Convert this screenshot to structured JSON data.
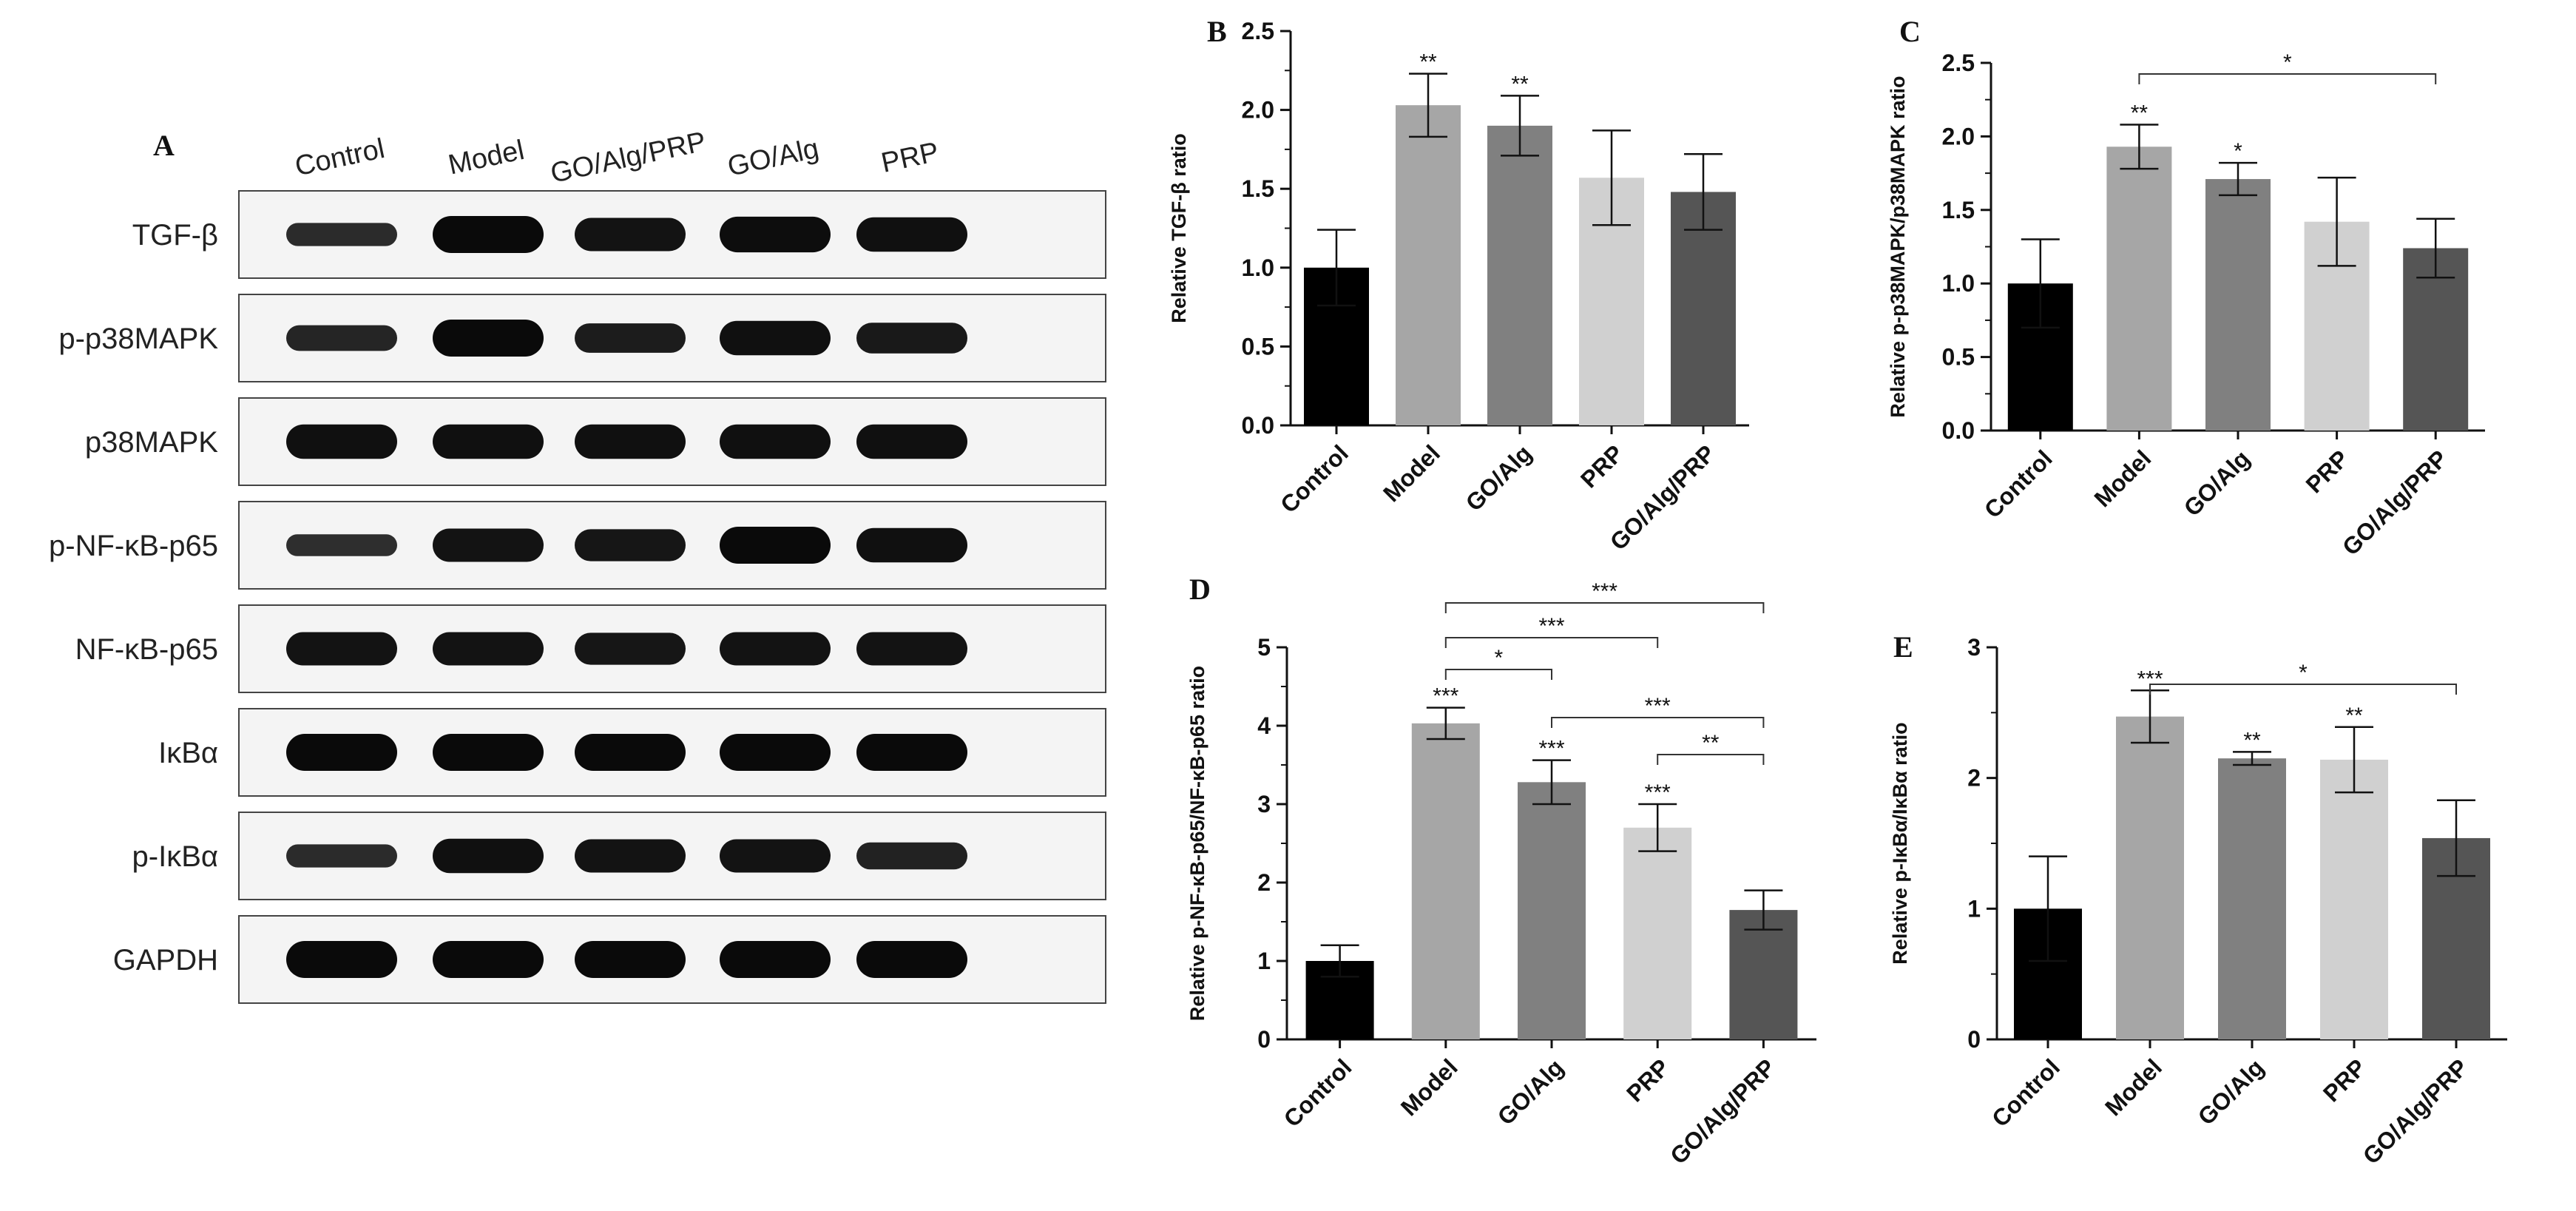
{
  "figure": {
    "panel_letters": {
      "A": "A",
      "B": "B",
      "C": "C",
      "D": "D",
      "E": "E"
    }
  },
  "blot": {
    "lanes": [
      "Control",
      "Model",
      "GO/Alg/PRP",
      "GO/Alg",
      "PRP"
    ],
    "rows": [
      {
        "label": "TGF-β",
        "intensity": [
          0.45,
          1.0,
          0.85,
          0.95,
          0.9
        ]
      },
      {
        "label": "p-p38MAPK",
        "intensity": [
          0.55,
          1.0,
          0.7,
          0.9,
          0.75
        ]
      },
      {
        "label": "p38MAPK",
        "intensity": [
          0.9,
          0.9,
          0.9,
          0.9,
          0.9
        ]
      },
      {
        "label": "p-NF-κB-p65",
        "intensity": [
          0.4,
          0.85,
          0.8,
          1.0,
          0.9
        ]
      },
      {
        "label": "NF-κB-p65",
        "intensity": [
          0.85,
          0.85,
          0.8,
          0.85,
          0.85
        ]
      },
      {
        "label": "IκBα",
        "intensity": [
          1.0,
          1.0,
          1.0,
          1.0,
          1.0
        ]
      },
      {
        "label": "p-IκBα",
        "intensity": [
          0.45,
          0.9,
          0.85,
          0.85,
          0.6
        ]
      },
      {
        "label": "GAPDH",
        "intensity": [
          1.0,
          1.0,
          1.0,
          1.0,
          1.0
        ]
      }
    ]
  },
  "chart_data": [
    {
      "id": "B",
      "type": "bar",
      "ylabel": "Relative TGF-β ratio",
      "ylim": [
        0,
        2.5
      ],
      "yticks": [
        0.0,
        0.5,
        1.0,
        1.5,
        2.0,
        2.5
      ],
      "ytick_labels": [
        "0.0",
        "0.5",
        "1.0",
        "1.5",
        "2.0",
        "2.5"
      ],
      "categories": [
        "Control",
        "Model",
        "GO/Alg",
        "PRP",
        "GO/Alg/PRP"
      ],
      "values": [
        1.0,
        2.03,
        1.9,
        1.57,
        1.48
      ],
      "errors": [
        0.24,
        0.2,
        0.19,
        0.3,
        0.24
      ],
      "colors": [
        "#000000",
        "#a6a6a6",
        "#808080",
        "#d0d0d0",
        "#555555"
      ],
      "stars": [
        "",
        "**",
        "**",
        "",
        ""
      ],
      "brackets": []
    },
    {
      "id": "C",
      "type": "bar",
      "ylabel": "Relative p-p38MAPK/p38MAPK ratio",
      "ylim": [
        0,
        2.5
      ],
      "yticks": [
        0.0,
        0.5,
        1.0,
        1.5,
        2.0,
        2.5
      ],
      "ytick_labels": [
        "0.0",
        "0.5",
        "1.0",
        "1.5",
        "2.0",
        "2.5"
      ],
      "categories": [
        "Control",
        "Model",
        "GO/Alg",
        "PRP",
        "GO/Alg/PRP"
      ],
      "values": [
        1.0,
        1.93,
        1.71,
        1.42,
        1.24
      ],
      "errors": [
        0.3,
        0.15,
        0.11,
        0.3,
        0.2
      ],
      "colors": [
        "#000000",
        "#a6a6a6",
        "#808080",
        "#d0d0d0",
        "#555555"
      ],
      "stars": [
        "",
        "**",
        "*",
        "",
        ""
      ],
      "brackets": [
        {
          "from": 1,
          "to": 4,
          "label": "*"
        }
      ]
    },
    {
      "id": "D",
      "type": "bar",
      "ylabel": "Relative p-NF-κB-p65/NF-κB-p65 ratio",
      "ylim": [
        0,
        5
      ],
      "yticks": [
        0,
        1,
        2,
        3,
        4,
        5
      ],
      "ytick_labels": [
        "0",
        "1",
        "2",
        "3",
        "4",
        "5"
      ],
      "categories": [
        "Control",
        "Model",
        "GO/Alg",
        "PRP",
        "GO/Alg/PRP"
      ],
      "values": [
        1.0,
        4.03,
        3.28,
        2.7,
        1.65
      ],
      "errors": [
        0.2,
        0.2,
        0.28,
        0.3,
        0.25
      ],
      "colors": [
        "#000000",
        "#a6a6a6",
        "#808080",
        "#d0d0d0",
        "#555555"
      ],
      "stars": [
        "",
        "***",
        "***",
        "***",
        ""
      ],
      "brackets": [
        {
          "from": 1,
          "to": 4,
          "label": "***"
        },
        {
          "from": 1,
          "to": 3,
          "label": "***"
        },
        {
          "from": 1,
          "to": 2,
          "label": "*"
        },
        {
          "from": 2,
          "to": 4,
          "label": "***"
        },
        {
          "from": 3,
          "to": 4,
          "label": "**"
        }
      ]
    },
    {
      "id": "E",
      "type": "bar",
      "ylabel": "Relative p-IκBα/IκBα ratio",
      "ylim": [
        0,
        3
      ],
      "yticks": [
        0,
        1,
        2,
        3
      ],
      "ytick_labels": [
        "0",
        "1",
        "2",
        "3"
      ],
      "categories": [
        "Control",
        "Model",
        "GO/Alg",
        "PRP",
        "GO/Alg/PRP"
      ],
      "values": [
        1.0,
        2.47,
        2.15,
        2.14,
        1.54
      ],
      "errors": [
        0.4,
        0.2,
        0.05,
        0.25,
        0.29
      ],
      "colors": [
        "#000000",
        "#a6a6a6",
        "#808080",
        "#d0d0d0",
        "#555555"
      ],
      "stars": [
        "",
        "***",
        "**",
        "**",
        ""
      ],
      "brackets": [
        {
          "from": 1,
          "to": 4,
          "label": "*"
        }
      ]
    }
  ]
}
